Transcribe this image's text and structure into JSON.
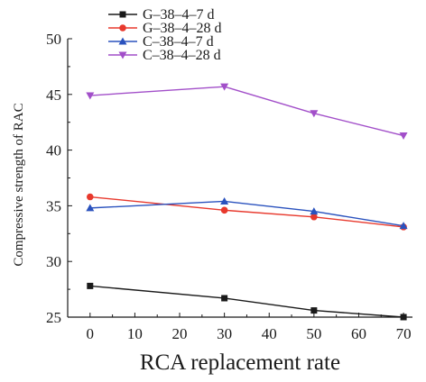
{
  "chart_data": {
    "type": "line",
    "xlabel": "RCA replacement rate",
    "ylabel": "Compressive strength of RAC",
    "x": [
      0,
      30,
      50,
      70
    ],
    "xlim": [
      -5,
      72
    ],
    "ylim": [
      25,
      50
    ],
    "xticks": [
      0,
      10,
      20,
      30,
      40,
      50,
      60,
      70
    ],
    "yticks": [
      25,
      30,
      35,
      40,
      45,
      50
    ],
    "grid": false,
    "legend_position": "top-left",
    "series": [
      {
        "name": "G–38–4–7 d",
        "values": [
          27.8,
          26.7,
          25.6,
          25.0
        ],
        "color": "#1a1a1a",
        "marker": "square"
      },
      {
        "name": "G–38–4–28 d",
        "values": [
          35.8,
          34.6,
          34.0,
          33.1
        ],
        "color": "#e8392d",
        "marker": "circle"
      },
      {
        "name": "C–38–4–7 d",
        "values": [
          34.8,
          35.4,
          34.5,
          33.2
        ],
        "color": "#2a52be",
        "marker": "triangle-up"
      },
      {
        "name": "C–38–4–28 d",
        "values": [
          44.9,
          45.7,
          43.3,
          41.3
        ],
        "color": "#a24fc9",
        "marker": "triangle-down"
      }
    ]
  }
}
